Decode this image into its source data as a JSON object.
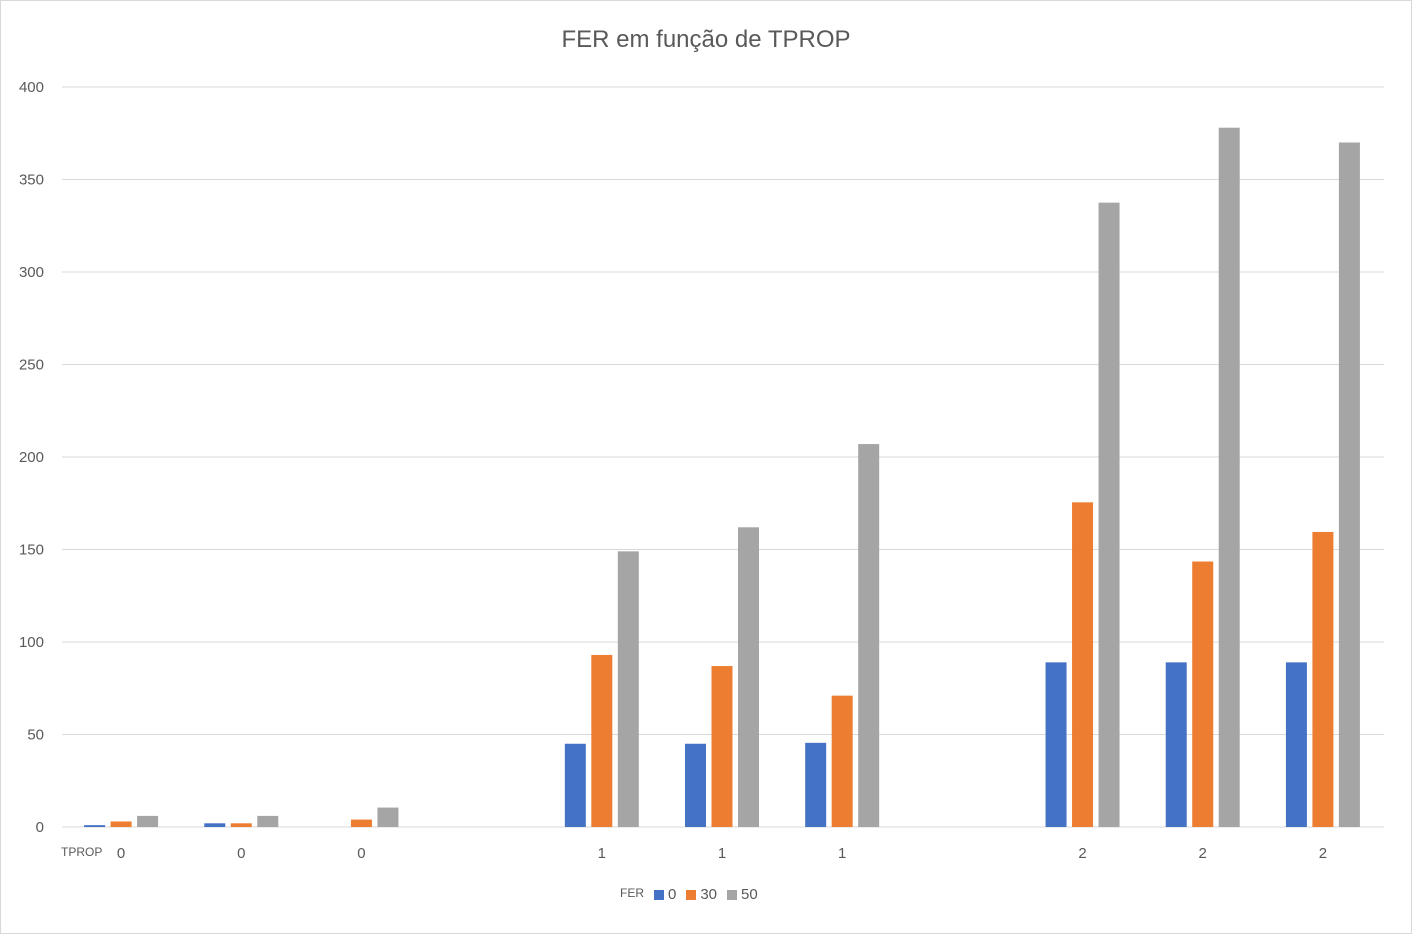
{
  "chart_data": {
    "type": "bar",
    "title": "FER em função de TPROP",
    "x_axis_title": "TPROP",
    "categories": [
      "0",
      "0",
      "0",
      "",
      "1",
      "1",
      "1",
      "",
      "2",
      "2",
      "2"
    ],
    "legend_title": "FER",
    "legend_position": "bottom",
    "grid": true,
    "ylim": [
      0,
      400
    ],
    "yticks": [
      0,
      50,
      100,
      150,
      200,
      250,
      300,
      350,
      400
    ],
    "series": [
      {
        "name": "0",
        "color": "#4472c4",
        "values": [
          1,
          2,
          0,
          null,
          45,
          45,
          45.5,
          null,
          89,
          89,
          89
        ]
      },
      {
        "name": "30",
        "color": "#ed7d31",
        "values": [
          3,
          2,
          4,
          null,
          93,
          87,
          71,
          null,
          175.5,
          143.5,
          159.5
        ]
      },
      {
        "name": "50",
        "color": "#a5a5a5",
        "values": [
          6,
          6,
          10.5,
          null,
          149,
          162,
          207,
          null,
          337.5,
          378,
          370
        ]
      }
    ]
  }
}
